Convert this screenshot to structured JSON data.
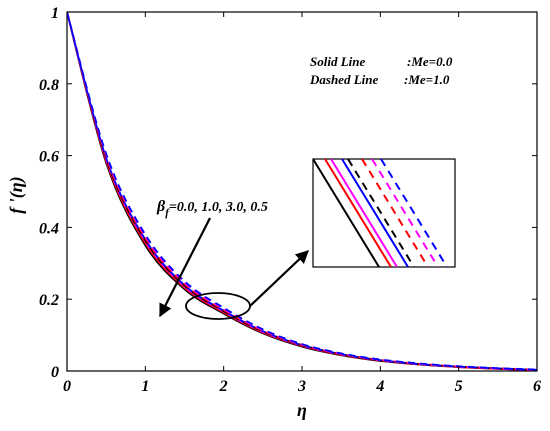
{
  "chart_data": {
    "type": "line",
    "xlabel": "η",
    "ylabel": "f '(η)",
    "xlim": [
      0,
      6
    ],
    "ylim": [
      0,
      1
    ],
    "xticks": [
      "0",
      "1",
      "2",
      "3",
      "4",
      "5",
      "6"
    ],
    "yticks": [
      "0",
      "0.2",
      "0.4",
      "0.6",
      "0.8",
      "1"
    ],
    "grid": false,
    "legend": {
      "placement": "top-right",
      "lines": [
        {
          "label": "Solid Line",
          "value": ":Me=0.0"
        },
        {
          "label": "Dashed Line",
          "value": ":Me=1.0"
        }
      ]
    },
    "annotation": {
      "symbol": "β",
      "subscript": "f",
      "text": "=0.0, 1.0, 3.0, 0.5"
    },
    "x": [
      0,
      0.5,
      1,
      1.5,
      2,
      2.5,
      3,
      3.5,
      4,
      4.5,
      5,
      5.5,
      6
    ],
    "series": [
      {
        "color": "#000000",
        "style": "solid",
        "values": [
          1.0,
          0.58,
          0.35,
          0.228,
          0.16,
          0.105,
          0.068,
          0.044,
          0.028,
          0.018,
          0.011,
          0.006,
          0.003
        ]
      },
      {
        "color": "#ff0000",
        "style": "solid",
        "values": [
          1.0,
          0.585,
          0.356,
          0.232,
          0.163,
          0.107,
          0.07,
          0.045,
          0.029,
          0.018,
          0.011,
          0.006,
          0.003
        ]
      },
      {
        "color": "#ff00ff",
        "style": "solid",
        "values": [
          1.0,
          0.59,
          0.362,
          0.236,
          0.166,
          0.109,
          0.071,
          0.046,
          0.03,
          0.019,
          0.012,
          0.007,
          0.003
        ]
      },
      {
        "color": "#0000ff",
        "style": "solid",
        "values": [
          1.0,
          0.593,
          0.366,
          0.239,
          0.168,
          0.111,
          0.072,
          0.047,
          0.03,
          0.019,
          0.012,
          0.007,
          0.003
        ]
      },
      {
        "color": "#000000",
        "style": "dashed",
        "values": [
          1.0,
          0.592,
          0.364,
          0.238,
          0.167,
          0.11,
          0.072,
          0.046,
          0.03,
          0.019,
          0.012,
          0.007,
          0.003
        ]
      },
      {
        "color": "#ff0000",
        "style": "dashed",
        "values": [
          1.0,
          0.597,
          0.37,
          0.242,
          0.17,
          0.112,
          0.073,
          0.047,
          0.031,
          0.02,
          0.012,
          0.007,
          0.004
        ]
      },
      {
        "color": "#ff00ff",
        "style": "dashed",
        "values": [
          1.0,
          0.601,
          0.375,
          0.246,
          0.173,
          0.114,
          0.074,
          0.048,
          0.031,
          0.02,
          0.013,
          0.007,
          0.004
        ]
      },
      {
        "color": "#0000ff",
        "style": "dashed",
        "values": [
          1.0,
          0.605,
          0.38,
          0.25,
          0.176,
          0.116,
          0.075,
          0.049,
          0.032,
          0.021,
          0.013,
          0.008,
          0.004
        ]
      }
    ]
  }
}
